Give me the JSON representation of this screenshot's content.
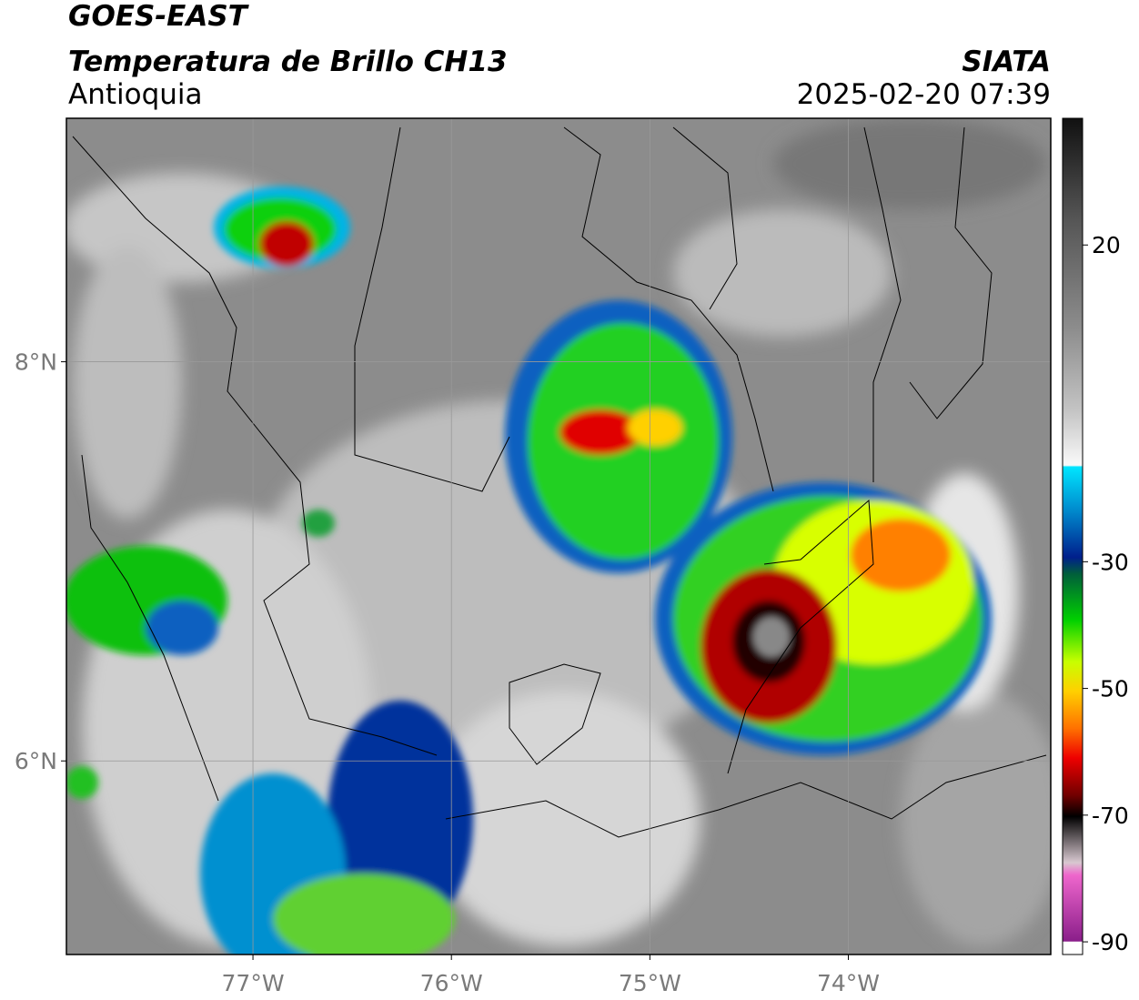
{
  "header": {
    "satellite": "GOES-EAST",
    "product": "Temperatura de Brillo CH13",
    "region": "Antioquia",
    "source": "SIATA",
    "timestamp": "2025-02-20 07:39"
  },
  "map": {
    "xlim": [
      -77.94,
      -72.98
    ],
    "ylim": [
      5.03,
      9.22
    ],
    "xticks": [
      {
        "value": -77,
        "label": "77°W"
      },
      {
        "value": -76,
        "label": "76°W"
      },
      {
        "value": -75,
        "label": "75°W"
      },
      {
        "value": -74,
        "label": "74°W"
      }
    ],
    "yticks": [
      {
        "value": 6,
        "label": "6°N"
      },
      {
        "value": 8,
        "label": "8°N"
      }
    ],
    "grid": true
  },
  "colorbar": {
    "lim": [
      -92,
      40
    ],
    "ticks": [
      20,
      -30,
      -50,
      -70,
      -90
    ]
  }
}
